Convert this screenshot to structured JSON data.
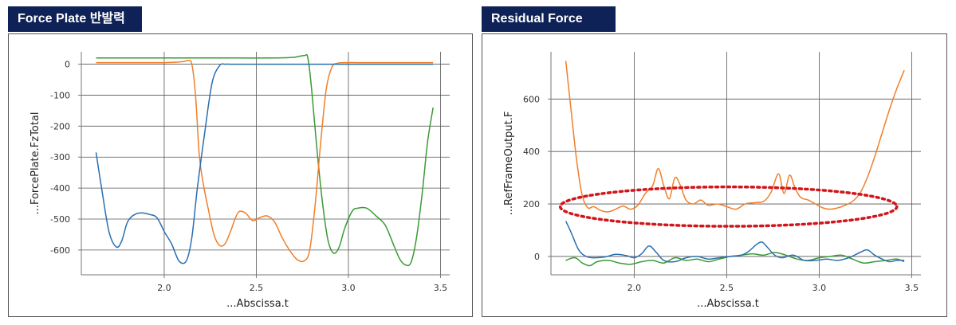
{
  "panels": [
    {
      "title": "Force Plate 반발력"
    },
    {
      "title": "Residual Force"
    }
  ],
  "colors": {
    "blue": "#2a6fb0",
    "orange": "#f07f2a",
    "green": "#3a9a35",
    "grid": "#555555",
    "highlight": "#d0161c",
    "tab": "#0f2257"
  },
  "chart_data": [
    {
      "type": "line",
      "title": "Force Plate 반발력",
      "xlabel": "...Abscissa.t",
      "ylabel": "...ForcePlate.FzTotal",
      "xlim": [
        1.55,
        3.55
      ],
      "ylim": [
        -680,
        40
      ],
      "xticks": [
        2.0,
        2.5,
        3.0,
        3.5
      ],
      "xtick_labels": [
        "2.0",
        "2.5",
        "3.0",
        "3.5"
      ],
      "yticks": [
        0,
        -100,
        -200,
        -300,
        -400,
        -500,
        -600
      ],
      "ytick_labels": [
        "0",
        "-100",
        "-200",
        "-300",
        "-400",
        "-500",
        "-600"
      ],
      "grid": true,
      "series": [
        {
          "name": "blue",
          "color": "blue",
          "x": [
            1.63,
            1.66,
            1.7,
            1.74,
            1.77,
            1.8,
            1.84,
            1.88,
            1.92,
            1.96,
            2.0,
            2.04,
            2.08,
            2.12,
            2.15,
            2.18,
            2.22,
            2.26,
            2.3,
            2.33,
            2.36,
            2.4,
            2.5,
            2.7,
            2.9,
            3.1,
            3.3,
            3.46
          ],
          "y": [
            -285,
            -400,
            -540,
            -590,
            -570,
            -510,
            -485,
            -480,
            -485,
            -495,
            -540,
            -580,
            -635,
            -635,
            -560,
            -400,
            -220,
            -60,
            -5,
            0,
            0,
            0,
            0,
            0,
            0,
            0,
            0,
            0
          ]
        },
        {
          "name": "orange",
          "color": "orange",
          "x": [
            1.63,
            1.8,
            2.0,
            2.1,
            2.13,
            2.15,
            2.17,
            2.19,
            2.21,
            2.24,
            2.27,
            2.3,
            2.33,
            2.36,
            2.4,
            2.44,
            2.48,
            2.52,
            2.56,
            2.6,
            2.64,
            2.68,
            2.72,
            2.76,
            2.79,
            2.82,
            2.85,
            2.88,
            2.91,
            2.94,
            2.98,
            3.1,
            3.3,
            3.46
          ],
          "y": [
            5,
            5,
            5,
            8,
            12,
            0,
            -100,
            -290,
            -380,
            -470,
            -550,
            -585,
            -580,
            -540,
            -480,
            -480,
            -505,
            -495,
            -490,
            -510,
            -560,
            -600,
            -630,
            -635,
            -600,
            -450,
            -250,
            -80,
            -10,
            3,
            5,
            5,
            5,
            5
          ]
        },
        {
          "name": "green",
          "color": "green",
          "x": [
            1.63,
            1.8,
            2.0,
            2.2,
            2.4,
            2.6,
            2.7,
            2.76,
            2.78,
            2.8,
            2.83,
            2.86,
            2.89,
            2.92,
            2.95,
            2.98,
            3.02,
            3.05,
            3.1,
            3.15,
            3.2,
            3.25,
            3.28,
            3.31,
            3.34,
            3.37,
            3.4,
            3.43,
            3.46
          ],
          "y": [
            20,
            20,
            20,
            20,
            20,
            20,
            22,
            28,
            20,
            -80,
            -280,
            -450,
            -570,
            -610,
            -590,
            -530,
            -475,
            -465,
            -465,
            -490,
            -520,
            -590,
            -630,
            -648,
            -640,
            -560,
            -420,
            -250,
            -140
          ]
        }
      ]
    },
    {
      "type": "line",
      "title": "Residual Force",
      "xlabel": "...Abscissa.t",
      "ylabel": "...RefFrameOutput.F",
      "xlim": [
        1.55,
        3.55
      ],
      "ylim": [
        -70,
        780
      ],
      "xticks": [
        2.0,
        2.5,
        3.0,
        3.5
      ],
      "xtick_labels": [
        "2.0",
        "2.5",
        "3.0",
        "3.5"
      ],
      "yticks": [
        0,
        200,
        400,
        600
      ],
      "ytick_labels": [
        "0",
        "200",
        "400",
        "600"
      ],
      "grid": true,
      "highlight_ellipse": {
        "x_center": 2.51,
        "y_center": 190,
        "x_radius": 0.91,
        "y_radius": 75
      },
      "series": [
        {
          "name": "orange",
          "color": "orange",
          "x": [
            1.63,
            1.66,
            1.69,
            1.72,
            1.75,
            1.78,
            1.82,
            1.86,
            1.9,
            1.94,
            1.98,
            2.02,
            2.06,
            2.1,
            2.13,
            2.16,
            2.19,
            2.22,
            2.25,
            2.28,
            2.32,
            2.36,
            2.4,
            2.45,
            2.5,
            2.55,
            2.6,
            2.65,
            2.7,
            2.74,
            2.78,
            2.81,
            2.84,
            2.87,
            2.9,
            2.94,
            2.98,
            3.02,
            3.06,
            3.1,
            3.14,
            3.18,
            3.22,
            3.26,
            3.3,
            3.34,
            3.38,
            3.42,
            3.46
          ],
          "y": [
            745,
            550,
            360,
            230,
            185,
            190,
            175,
            170,
            180,
            192,
            180,
            195,
            240,
            270,
            335,
            270,
            220,
            300,
            270,
            215,
            200,
            215,
            195,
            200,
            190,
            180,
            200,
            205,
            210,
            245,
            315,
            240,
            310,
            260,
            225,
            215,
            200,
            185,
            180,
            185,
            195,
            210,
            240,
            300,
            380,
            470,
            560,
            640,
            710
          ]
        },
        {
          "name": "blue",
          "color": "blue",
          "x": [
            1.63,
            1.66,
            1.7,
            1.74,
            1.78,
            1.84,
            1.9,
            1.96,
            2.0,
            2.04,
            2.08,
            2.12,
            2.16,
            2.22,
            2.28,
            2.34,
            2.4,
            2.46,
            2.52,
            2.58,
            2.62,
            2.66,
            2.69,
            2.72,
            2.76,
            2.8,
            2.86,
            2.92,
            2.98,
            3.04,
            3.1,
            3.16,
            3.22,
            3.26,
            3.3,
            3.34,
            3.38,
            3.42,
            3.46
          ],
          "y": [
            135,
            90,
            25,
            0,
            -5,
            -2,
            8,
            3,
            -5,
            10,
            40,
            15,
            -15,
            -20,
            -5,
            0,
            -10,
            -5,
            0,
            5,
            20,
            45,
            55,
            35,
            5,
            -5,
            5,
            -15,
            -15,
            -10,
            -15,
            -5,
            15,
            25,
            5,
            -10,
            -20,
            -15,
            -15
          ]
        },
        {
          "name": "green",
          "color": "green",
          "x": [
            1.63,
            1.68,
            1.72,
            1.76,
            1.8,
            1.86,
            1.92,
            1.98,
            2.04,
            2.1,
            2.16,
            2.22,
            2.28,
            2.34,
            2.4,
            2.46,
            2.52,
            2.58,
            2.64,
            2.7,
            2.76,
            2.82,
            2.88,
            2.94,
            3.0,
            3.06,
            3.12,
            3.18,
            3.24,
            3.3,
            3.36,
            3.42,
            3.46
          ],
          "y": [
            -15,
            -5,
            -25,
            -35,
            -20,
            -15,
            -25,
            -30,
            -20,
            -15,
            -25,
            -5,
            -15,
            -10,
            -20,
            -10,
            0,
            5,
            10,
            5,
            15,
            5,
            -10,
            -15,
            -5,
            0,
            5,
            -10,
            -25,
            -20,
            -15,
            -10,
            -20
          ]
        }
      ]
    }
  ]
}
